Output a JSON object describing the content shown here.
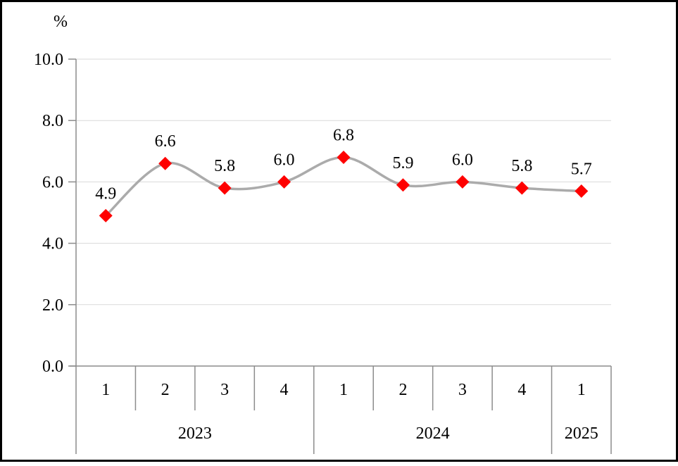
{
  "chart_data": {
    "type": "line",
    "title": "",
    "xlabel": "",
    "ylabel": "%",
    "x_quarters": [
      "1",
      "2",
      "3",
      "4",
      "1",
      "2",
      "3",
      "4",
      "1"
    ],
    "year_groups": [
      {
        "label": "2023",
        "span": 4
      },
      {
        "label": "2024",
        "span": 4
      },
      {
        "label": "2025",
        "span": 1
      }
    ],
    "values": [
      4.9,
      6.6,
      5.8,
      6.0,
      6.8,
      5.9,
      6.0,
      5.8,
      5.7
    ],
    "data_labels": [
      "4.9",
      "6.6",
      "5.8",
      "6.0",
      "6.8",
      "5.9",
      "6.0",
      "5.8",
      "5.7"
    ],
    "ylim": [
      0.0,
      10.0
    ],
    "y_ticks": [
      "0.0",
      "2.0",
      "4.0",
      "6.0",
      "8.0",
      "10.0"
    ],
    "grid": true,
    "legend": "none",
    "smoothed": true,
    "marker_shape": "diamond",
    "colors": {
      "line": "#ababab",
      "marker": "#fe0000",
      "gridline": "#d9d9d9",
      "axis": "#8c8c8c",
      "text": "#000000",
      "frame": "#000000",
      "background": "#ffffff"
    }
  }
}
